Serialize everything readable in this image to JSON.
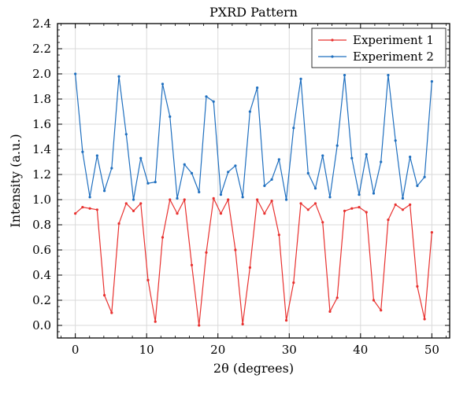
{
  "chart_data": {
    "type": "line",
    "title": "PXRD Pattern",
    "xlabel": "2θ (degrees)",
    "ylabel": "Intensity (a.u.)",
    "xlim": [
      -2.5,
      52.5
    ],
    "ylim": [
      -0.1,
      2.4
    ],
    "xticks": [
      0,
      10,
      20,
      30,
      40,
      50
    ],
    "yticks": [
      0.0,
      0.2,
      0.4,
      0.6,
      0.8,
      1.0,
      1.2,
      1.4,
      1.6,
      1.8,
      2.0,
      2.2,
      2.4
    ],
    "grid": true,
    "legend": "top-right",
    "x": [
      0.0,
      1.02,
      2.04,
      3.06,
      4.08,
      5.1,
      6.12,
      7.14,
      8.16,
      9.18,
      10.2,
      11.22,
      12.24,
      13.27,
      14.29,
      15.31,
      16.33,
      17.35,
      18.37,
      19.39,
      20.41,
      21.43,
      22.45,
      23.47,
      24.49,
      25.51,
      26.53,
      27.55,
      28.57,
      29.59,
      30.61,
      31.63,
      32.65,
      33.67,
      34.69,
      35.71,
      36.73,
      37.76,
      38.78,
      39.8,
      40.82,
      41.84,
      42.86,
      43.88,
      44.9,
      45.92,
      46.94,
      47.96,
      48.98,
      50.0
    ],
    "series": [
      {
        "name": "Experiment 1",
        "color": "#e8312f",
        "values": [
          0.89,
          0.94,
          0.93,
          0.92,
          0.24,
          0.1,
          0.81,
          0.97,
          0.91,
          0.97,
          0.36,
          0.03,
          0.7,
          1.0,
          0.89,
          1.0,
          0.48,
          0.0,
          0.58,
          1.01,
          0.89,
          1.0,
          0.6,
          0.01,
          0.46,
          1.0,
          0.89,
          0.99,
          0.72,
          0.04,
          0.34,
          0.97,
          0.92,
          0.97,
          0.82,
          0.11,
          0.22,
          0.91,
          0.93,
          0.94,
          0.9,
          0.2,
          0.12,
          0.84,
          0.96,
          0.92,
          0.96,
          0.31,
          0.05,
          0.74
        ]
      },
      {
        "name": "Experiment 2",
        "color": "#1f6fbf",
        "values": [
          2.0,
          1.38,
          1.02,
          1.35,
          1.07,
          1.25,
          1.98,
          1.52,
          1.0,
          1.33,
          1.13,
          1.14,
          1.92,
          1.66,
          1.01,
          1.28,
          1.21,
          1.06,
          1.82,
          1.78,
          1.04,
          1.22,
          1.27,
          1.02,
          1.7,
          1.89,
          1.11,
          1.16,
          1.32,
          1.0,
          1.57,
          1.96,
          1.21,
          1.09,
          1.35,
          1.02,
          1.43,
          1.99,
          1.33,
          1.04,
          1.36,
          1.05,
          1.3,
          1.99,
          1.47,
          1.01,
          1.34,
          1.11,
          1.18,
          1.94
        ]
      }
    ]
  }
}
